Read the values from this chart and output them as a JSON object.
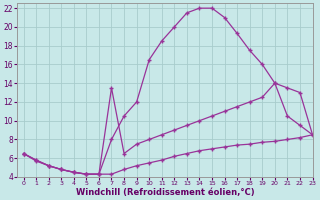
{
  "bg_color": "#c8e8e8",
  "grid_color": "#a8cccc",
  "line_color": "#993399",
  "tick_color": "#660066",
  "xlim": [
    -0.5,
    23
  ],
  "ylim": [
    4,
    22.5
  ],
  "xticks": [
    0,
    1,
    2,
    3,
    4,
    5,
    6,
    7,
    8,
    9,
    10,
    11,
    12,
    13,
    14,
    15,
    16,
    17,
    18,
    19,
    20,
    21,
    22,
    23
  ],
  "yticks": [
    4,
    6,
    8,
    10,
    12,
    14,
    16,
    18,
    20,
    22
  ],
  "xlabel": "Windchill (Refroidissement éolien,°C)",
  "line1": {
    "x": [
      0,
      1,
      2,
      3,
      4,
      5,
      6,
      7,
      8,
      9,
      10,
      11,
      12,
      13,
      14,
      15,
      16,
      17,
      18,
      19,
      20,
      21,
      22,
      23
    ],
    "y": [
      6.5,
      5.8,
      5.2,
      4.8,
      4.5,
      4.3,
      4.3,
      8.0,
      10.5,
      12.0,
      16.5,
      18.5,
      20.0,
      21.5,
      22.0,
      22.0,
      21.0,
      19.3,
      17.5,
      16.0,
      14.0,
      13.5,
      13.0,
      8.5
    ]
  },
  "line2": {
    "x": [
      0,
      1,
      2,
      3,
      4,
      5,
      6,
      7,
      8,
      9,
      10,
      11,
      12,
      13,
      14,
      15,
      16,
      17,
      18,
      19,
      20,
      21,
      22,
      23
    ],
    "y": [
      6.5,
      5.8,
      5.2,
      4.8,
      4.5,
      4.3,
      4.3,
      13.5,
      6.5,
      7.5,
      8.0,
      8.5,
      9.0,
      9.5,
      10.0,
      10.5,
      11.0,
      11.5,
      12.0,
      12.5,
      14.0,
      10.5,
      9.5,
      8.5
    ]
  },
  "line3": {
    "x": [
      0,
      1,
      2,
      3,
      4,
      5,
      6,
      7,
      8,
      9,
      10,
      11,
      12,
      13,
      14,
      15,
      16,
      17,
      18,
      19,
      20,
      21,
      22,
      23
    ],
    "y": [
      6.5,
      5.7,
      5.2,
      4.8,
      4.5,
      4.3,
      4.3,
      4.3,
      4.8,
      5.2,
      5.5,
      5.8,
      6.2,
      6.5,
      6.8,
      7.0,
      7.2,
      7.4,
      7.5,
      7.7,
      7.8,
      8.0,
      8.2,
      8.5
    ]
  }
}
